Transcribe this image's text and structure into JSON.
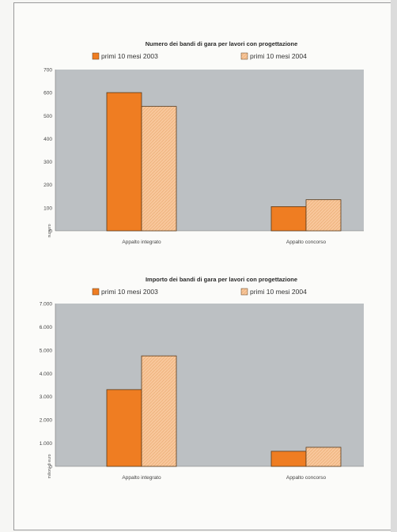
{
  "colors": {
    "plot_bg": "#bcc0c3",
    "series_2003": "#ef7d22",
    "series_2004": "#f8c79b",
    "bar_stroke": "#5a3a1a"
  },
  "chart_data": [
    {
      "type": "bar",
      "title": "Numero dei bandi di gara per lavori con progettazione",
      "categories": [
        "Appalto integrato",
        "Appalto concorso"
      ],
      "series": [
        {
          "name": "primi 10 mesi 2003",
          "values": [
            600,
            105
          ]
        },
        {
          "name": "primi 10 mesi 2004",
          "values": [
            540,
            135
          ]
        }
      ],
      "yticks": [
        "700",
        "600",
        "500",
        "400",
        "300",
        "200",
        "100",
        "0"
      ],
      "ylim": [
        0,
        700
      ],
      "ylabel": "numero",
      "legend": "top",
      "grid": false
    },
    {
      "type": "bar",
      "title": "Importo dei bandi di gara per lavori con progettazione",
      "categories": [
        "Appalto integrato",
        "Appalto concorso"
      ],
      "series": [
        {
          "name": "primi 10 mesi 2003",
          "values": [
            3300,
            650
          ]
        },
        {
          "name": "primi 10 mesi 2004",
          "values": [
            4750,
            820
          ]
        }
      ],
      "yticks": [
        "7.000",
        "6.000",
        "5.000",
        "4.000",
        "3.000",
        "2.000",
        "1.000",
        "0"
      ],
      "ylim": [
        0,
        7000
      ],
      "ylabel": "milioni di euro",
      "legend": "top",
      "grid": false
    }
  ]
}
